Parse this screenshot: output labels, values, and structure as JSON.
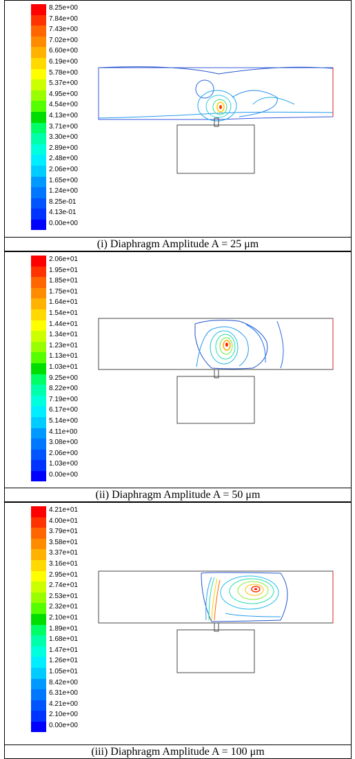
{
  "panels": [
    {
      "caption": "(i) Diaphragm Amplitude A = 25 μm",
      "legend": [
        "8.25e+00",
        "7.84e+00",
        "7.43e+00",
        "7.02e+00",
        "6.60e+00",
        "6.19e+00",
        "5.78e+00",
        "5.37e+00",
        "4.95e+00",
        "4.54e+00",
        "4.13e+00",
        "3.71e+00",
        "3.30e+00",
        "2.89e+00",
        "2.48e+00",
        "2.06e+00",
        "1.65e+00",
        "1.24e+00",
        "8.25e-01",
        "4.13e-01",
        "0.00e+00"
      ]
    },
    {
      "caption": "(ii) Diaphragm Amplitude A = 50 μm",
      "legend": [
        "2.06e+01",
        "1.95e+01",
        "1.85e+01",
        "1.75e+01",
        "1.64e+01",
        "1.54e+01",
        "1.44e+01",
        "1.34e+01",
        "1.23e+01",
        "1.13e+01",
        "1.03e+01",
        "9.25e+00",
        "8.22e+00",
        "7.19e+00",
        "6.17e+00",
        "5.14e+00",
        "4.11e+00",
        "3.08e+00",
        "2.06e+00",
        "1.03e+00",
        "0.00e+00"
      ]
    },
    {
      "caption": "(iii) Diaphragm Amplitude A = 100 μm",
      "legend": [
        "4.21e+01",
        "4.00e+01",
        "3.79e+01",
        "3.58e+01",
        "3.37e+01",
        "3.16e+01",
        "2.95e+01",
        "2.74e+01",
        "2.53e+01",
        "2.32e+01",
        "2.10e+01",
        "1.89e+01",
        "1.68e+01",
        "1.47e+01",
        "1.26e+01",
        "1.05e+01",
        "8.42e+00",
        "6.31e+00",
        "4.21e+00",
        "2.10e+00",
        "0.00e+00"
      ]
    }
  ],
  "colors": [
    "#ff0000",
    "#ff3300",
    "#ff6600",
    "#ff8c00",
    "#ffb300",
    "#ffd900",
    "#ffff00",
    "#ccff00",
    "#99ff00",
    "#55ff00",
    "#00dd00",
    "#00ff66",
    "#00ffaa",
    "#00ffdd",
    "#00eeff",
    "#00ccff",
    "#0099ff",
    "#0077ff",
    "#0055ff",
    "#0033ff",
    "#0000ff"
  ]
}
